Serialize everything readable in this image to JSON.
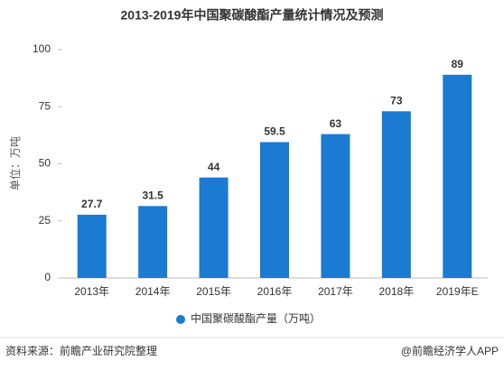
{
  "chart_data": {
    "type": "bar",
    "title": "2013-2019年中国聚碳酸酯产量统计情况及预测",
    "y_label": "单位：万吨",
    "categories": [
      "2013年",
      "2014年",
      "2015年",
      "2016年",
      "2017年",
      "2018年",
      "2019年E"
    ],
    "series": [
      {
        "name": "中国聚碳酸酯产量（万吨）",
        "color": "#1b7ad1",
        "values": [
          27.7,
          31.5,
          44,
          59.5,
          63,
          73,
          89
        ]
      }
    ],
    "ylim": [
      0,
      100
    ],
    "yticks": [
      0,
      25,
      50,
      75,
      100
    ],
    "grid": false,
    "legend": "bottom"
  },
  "footer": {
    "source": "资料来源：前瞻产业研究院整理",
    "credit": "@前瞻经济学人APP"
  }
}
